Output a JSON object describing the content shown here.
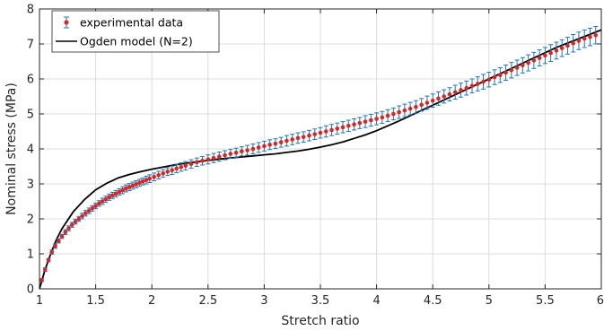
{
  "chart_data": {
    "type": "scatter",
    "title": "",
    "xlabel": "Stretch ratio",
    "ylabel": "Nominal stress (MPa)",
    "xlim": [
      1,
      6
    ],
    "ylim": [
      0,
      8
    ],
    "xticks": [
      1,
      1.5,
      2,
      2.5,
      3,
      3.5,
      4,
      4.5,
      5,
      5.5,
      6
    ],
    "xtick_labels": [
      "1",
      "1.5",
      "2",
      "2.5",
      "3",
      "3.5",
      "4",
      "4.5",
      "5",
      "5.5",
      "6"
    ],
    "yticks": [
      0,
      1,
      2,
      3,
      4,
      5,
      6,
      7,
      8
    ],
    "ytick_labels": [
      "0",
      "1",
      "2",
      "3",
      "4",
      "5",
      "6",
      "7",
      "8"
    ],
    "grid": true,
    "legend": {
      "position": "top-left",
      "entries": [
        "experimental data",
        "Ogden model (N=2)"
      ]
    },
    "series": [
      {
        "name": "experimental data",
        "kind": "scatter-errorbar",
        "color": "#d62728",
        "errorbar_color": "#1f77b4",
        "x": [
          1.02,
          1.05,
          1.08,
          1.11,
          1.14,
          1.17,
          1.2,
          1.23,
          1.26,
          1.29,
          1.32,
          1.35,
          1.38,
          1.41,
          1.44,
          1.47,
          1.5,
          1.53,
          1.56,
          1.59,
          1.62,
          1.65,
          1.68,
          1.71,
          1.74,
          1.77,
          1.8,
          1.83,
          1.86,
          1.89,
          1.92,
          1.95,
          1.98,
          2.02,
          2.06,
          2.1,
          2.14,
          2.18,
          2.22,
          2.26,
          2.3,
          2.35,
          2.4,
          2.45,
          2.5,
          2.55,
          2.6,
          2.65,
          2.7,
          2.75,
          2.8,
          2.85,
          2.9,
          2.95,
          3.0,
          3.05,
          3.1,
          3.15,
          3.2,
          3.25,
          3.3,
          3.35,
          3.4,
          3.45,
          3.5,
          3.55,
          3.6,
          3.65,
          3.7,
          3.75,
          3.8,
          3.85,
          3.9,
          3.95,
          4.0,
          4.05,
          4.1,
          4.15,
          4.2,
          4.25,
          4.3,
          4.35,
          4.4,
          4.45,
          4.5,
          4.55,
          4.6,
          4.65,
          4.7,
          4.75,
          4.8,
          4.85,
          4.9,
          4.95,
          5.0,
          5.05,
          5.1,
          5.15,
          5.2,
          5.25,
          5.3,
          5.35,
          5.4,
          5.45,
          5.5,
          5.55,
          5.6,
          5.65,
          5.7,
          5.75,
          5.8,
          5.85,
          5.9,
          5.95
        ],
        "y": [
          0.25,
          0.55,
          0.82,
          1.05,
          1.22,
          1.37,
          1.5,
          1.62,
          1.73,
          1.83,
          1.92,
          2.0,
          2.08,
          2.16,
          2.23,
          2.3,
          2.37,
          2.44,
          2.5,
          2.56,
          2.62,
          2.67,
          2.72,
          2.77,
          2.82,
          2.87,
          2.91,
          2.95,
          2.99,
          3.03,
          3.07,
          3.11,
          3.15,
          3.2,
          3.25,
          3.3,
          3.35,
          3.39,
          3.44,
          3.48,
          3.52,
          3.57,
          3.62,
          3.66,
          3.7,
          3.74,
          3.78,
          3.82,
          3.86,
          3.89,
          3.93,
          3.96,
          4.0,
          4.04,
          4.08,
          4.12,
          4.15,
          4.19,
          4.23,
          4.27,
          4.31,
          4.34,
          4.38,
          4.42,
          4.46,
          4.5,
          4.54,
          4.58,
          4.62,
          4.66,
          4.7,
          4.74,
          4.78,
          4.82,
          4.86,
          4.9,
          4.95,
          5.0,
          5.05,
          5.1,
          5.15,
          5.2,
          5.26,
          5.32,
          5.38,
          5.44,
          5.5,
          5.56,
          5.62,
          5.68,
          5.74,
          5.8,
          5.86,
          5.92,
          5.98,
          6.05,
          6.11,
          6.18,
          6.25,
          6.32,
          6.39,
          6.46,
          6.53,
          6.6,
          6.67,
          6.74,
          6.81,
          6.88,
          6.95,
          7.02,
          7.09,
          7.15,
          7.2,
          7.25
        ],
        "error": [
          0.04,
          0.05,
          0.05,
          0.06,
          0.06,
          0.06,
          0.06,
          0.07,
          0.07,
          0.07,
          0.07,
          0.07,
          0.08,
          0.08,
          0.08,
          0.08,
          0.08,
          0.08,
          0.09,
          0.09,
          0.09,
          0.09,
          0.09,
          0.09,
          0.1,
          0.1,
          0.1,
          0.1,
          0.1,
          0.1,
          0.1,
          0.11,
          0.11,
          0.11,
          0.11,
          0.11,
          0.11,
          0.12,
          0.12,
          0.12,
          0.12,
          0.12,
          0.12,
          0.12,
          0.13,
          0.13,
          0.13,
          0.13,
          0.13,
          0.13,
          0.13,
          0.14,
          0.14,
          0.14,
          0.14,
          0.14,
          0.14,
          0.14,
          0.15,
          0.15,
          0.15,
          0.15,
          0.15,
          0.15,
          0.15,
          0.16,
          0.16,
          0.16,
          0.16,
          0.16,
          0.16,
          0.16,
          0.17,
          0.17,
          0.17,
          0.17,
          0.17,
          0.17,
          0.18,
          0.18,
          0.18,
          0.18,
          0.18,
          0.19,
          0.19,
          0.19,
          0.19,
          0.19,
          0.2,
          0.2,
          0.2,
          0.2,
          0.2,
          0.21,
          0.21,
          0.21,
          0.21,
          0.22,
          0.22,
          0.22,
          0.22,
          0.23,
          0.23,
          0.23,
          0.23,
          0.24,
          0.24,
          0.24,
          0.24,
          0.25,
          0.25,
          0.25,
          0.25,
          0.25
        ]
      },
      {
        "name": "Ogden model (N=2)",
        "kind": "line",
        "color": "#000000",
        "x": [
          1.0,
          1.02,
          1.05,
          1.1,
          1.15,
          1.2,
          1.3,
          1.4,
          1.5,
          1.6,
          1.7,
          1.8,
          1.9,
          2.0,
          2.1,
          2.2,
          2.3,
          2.4,
          2.5,
          2.6,
          2.7,
          2.8,
          2.9,
          3.0,
          3.1,
          3.2,
          3.3,
          3.4,
          3.5,
          3.6,
          3.7,
          3.8,
          3.9,
          4.0,
          4.2,
          4.4,
          4.6,
          4.8,
          5.0,
          5.2,
          5.4,
          5.6,
          5.8,
          6.0
        ],
        "y": [
          0.0,
          0.22,
          0.55,
          1.0,
          1.4,
          1.72,
          2.2,
          2.55,
          2.83,
          3.02,
          3.17,
          3.27,
          3.35,
          3.42,
          3.48,
          3.54,
          3.59,
          3.63,
          3.67,
          3.71,
          3.74,
          3.77,
          3.8,
          3.83,
          3.86,
          3.9,
          3.94,
          3.99,
          4.05,
          4.12,
          4.2,
          4.3,
          4.4,
          4.52,
          4.8,
          5.1,
          5.4,
          5.7,
          6.0,
          6.3,
          6.6,
          6.9,
          7.15,
          7.4
        ]
      }
    ]
  }
}
